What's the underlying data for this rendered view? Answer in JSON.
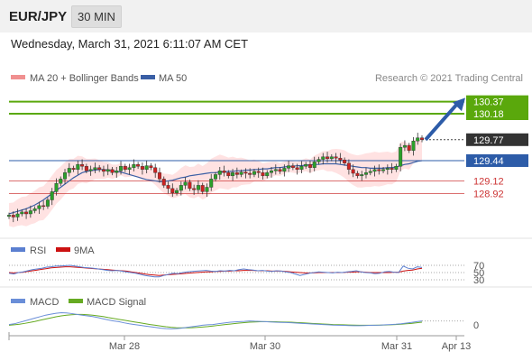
{
  "header": {
    "symbol": "EUR/JPY",
    "timeframe": "30 MIN"
  },
  "datetime": "Wednesday, March 31, 2021 6:11:07 AM CET",
  "credit": "Research © 2021 Trading Central",
  "colors": {
    "up": "#2aa02a",
    "down": "#cc2222",
    "resistance": "#5aa80c",
    "support_blue": "#2d5ca8",
    "support_red": "#cc3333",
    "ma50": "#3a5fa5",
    "bollinger": "#ffd6d6",
    "rsi": "#5b7fd0",
    "rsi_ma": "#cc1111",
    "macd": "#6a8ed8",
    "macd_signal": "#66aa22"
  },
  "chart_data": [
    {
      "type": "candlestick",
      "legend": [
        {
          "name": "MA 20 + Bollinger Bands",
          "color": "#f09090"
        },
        {
          "name": "MA 50",
          "color": "#3a5fa5"
        }
      ],
      "ylim": [
        128.5,
        130.55
      ],
      "levels": [
        {
          "value": 130.37,
          "label": "130.37",
          "style": "resistance"
        },
        {
          "value": 130.18,
          "label": "130.18",
          "style": "resistance"
        },
        {
          "value": 129.77,
          "label": "129.77",
          "style": "current"
        },
        {
          "value": 129.44,
          "label": "129.44",
          "style": "support_blue"
        },
        {
          "value": 129.12,
          "label": "129.12",
          "style": "support_red"
        },
        {
          "value": 128.92,
          "label": "128.92",
          "style": "support_red"
        }
      ],
      "x_ticks": [
        "Mar 28",
        "Mar 30",
        "Mar 31",
        "Apr 13"
      ],
      "close": [
        128.58,
        128.55,
        128.6,
        128.63,
        128.6,
        128.65,
        128.68,
        128.73,
        128.72,
        128.82,
        128.95,
        129.08,
        129.15,
        129.25,
        129.32,
        129.3,
        129.38,
        129.35,
        129.28,
        129.3,
        129.33,
        129.3,
        129.27,
        129.3,
        129.25,
        129.28,
        129.35,
        129.3,
        129.33,
        129.38,
        129.35,
        129.3,
        129.36,
        129.33,
        129.25,
        129.15,
        129.05,
        129.0,
        128.93,
        128.97,
        129.05,
        129.1,
        129.0,
        128.98,
        129.05,
        128.95,
        129.02,
        129.15,
        129.22,
        129.28,
        129.25,
        129.2,
        129.25,
        129.22,
        129.26,
        129.24,
        129.22,
        129.27,
        129.25,
        129.2,
        129.25,
        129.28,
        129.3,
        129.27,
        129.32,
        129.36,
        129.33,
        129.3,
        129.35,
        129.38,
        129.33,
        129.42,
        129.46,
        129.5,
        129.47,
        129.5,
        129.48,
        129.45,
        129.4,
        129.3,
        129.24,
        129.2,
        129.22,
        129.25,
        129.27,
        129.3,
        129.28,
        129.3,
        129.32,
        129.3,
        129.35,
        129.65,
        129.68,
        129.6,
        129.75,
        129.8,
        129.77
      ],
      "ma50": [
        128.6,
        128.62,
        128.64,
        128.66,
        128.68,
        128.71,
        128.74,
        128.78,
        128.82,
        128.87,
        128.92,
        128.97,
        129.02,
        129.07,
        129.12,
        129.17,
        129.21,
        129.25,
        129.27,
        129.28,
        129.29,
        129.3,
        129.3,
        129.29,
        129.28,
        129.27,
        129.26,
        129.24,
        129.22,
        129.2,
        129.18,
        129.16,
        129.14,
        129.13,
        129.12,
        129.11,
        129.11,
        129.12,
        129.13,
        129.15,
        129.17,
        129.18,
        129.2,
        129.21,
        129.22,
        129.23,
        129.24,
        129.25,
        129.25,
        129.26,
        129.26,
        129.27,
        129.27,
        129.28,
        129.28,
        129.29,
        129.29,
        129.3,
        129.3,
        129.31,
        129.31,
        129.32,
        129.33,
        129.33,
        129.34,
        129.35,
        129.35,
        129.36,
        129.36,
        129.37,
        129.37,
        129.38,
        129.38,
        129.39,
        129.39,
        129.39,
        129.39,
        129.38,
        129.37,
        129.36,
        129.35,
        129.34,
        129.33,
        129.33,
        129.32,
        129.32,
        129.32,
        129.32,
        129.33,
        129.33,
        129.34,
        129.36,
        129.38,
        129.39,
        129.41,
        129.43,
        129.44
      ],
      "boll_width": 0.18
    },
    {
      "type": "line",
      "legend": [
        {
          "name": "RSI",
          "color": "#5b7fd0"
        },
        {
          "name": "9MA",
          "color": "#cc1111"
        }
      ],
      "ylim": [
        20,
        80
      ],
      "y_ticks": [
        {
          "value": 70,
          "label": "70"
        },
        {
          "value": 50,
          "label": "50"
        },
        {
          "value": 30,
          "label": "30"
        }
      ],
      "rsi": [
        48,
        46,
        50,
        52,
        55,
        58,
        60,
        62,
        65,
        66,
        68,
        68,
        69,
        70,
        68,
        66,
        64,
        63,
        62,
        60,
        58,
        56,
        55,
        56,
        54,
        52,
        50,
        48,
        45,
        42,
        40,
        38,
        38,
        42,
        45,
        48,
        47,
        50,
        52,
        53,
        54,
        55,
        56,
        54,
        53,
        55,
        54,
        56,
        55,
        58,
        60,
        58,
        57,
        55,
        56,
        54,
        53,
        55,
        54,
        52,
        50,
        46,
        42,
        45,
        48,
        50,
        52,
        51,
        50,
        49,
        51,
        50,
        52,
        53,
        55,
        52,
        50,
        49,
        47,
        48,
        52,
        53,
        51,
        50,
        68,
        62,
        60,
        66,
        64
      ],
      "rsi_ma": [
        50,
        49,
        50,
        51,
        53,
        55,
        57,
        59,
        61,
        63,
        64,
        65,
        66,
        66,
        65,
        64,
        63,
        62,
        61,
        60,
        59,
        58,
        57,
        56,
        55,
        54,
        52,
        50,
        48,
        46,
        44,
        43,
        42,
        43,
        44,
        45,
        46,
        47,
        48,
        49,
        50,
        51,
        52,
        52,
        53,
        53,
        54,
        54,
        55,
        55,
        56,
        56,
        56,
        55,
        55,
        55,
        54,
        54,
        54,
        53,
        52,
        51,
        50,
        49,
        49,
        49,
        50,
        50,
        50,
        50,
        50,
        50,
        51,
        51,
        52,
        52,
        51,
        50,
        50,
        50,
        50,
        50,
        51,
        51,
        54,
        56,
        57,
        60,
        62
      ]
    },
    {
      "type": "line",
      "legend": [
        {
          "name": "MACD",
          "color": "#6a8ed8"
        },
        {
          "name": "MACD Signal",
          "color": "#66aa22"
        }
      ],
      "ylim": [
        -1,
        1
      ],
      "y_ticks": [
        {
          "value": 0,
          "label": "0"
        }
      ],
      "macd": [
        -0.1,
        -0.05,
        0.05,
        0.15,
        0.25,
        0.35,
        0.45,
        0.55,
        0.62,
        0.68,
        0.72,
        0.7,
        0.66,
        0.6,
        0.55,
        0.5,
        0.45,
        0.38,
        0.3,
        0.22,
        0.15,
        0.1,
        0.02,
        -0.05,
        -0.1,
        -0.15,
        -0.2,
        -0.25,
        -0.3,
        -0.35,
        -0.38,
        -0.4,
        -0.38,
        -0.35,
        -0.3,
        -0.25,
        -0.2,
        -0.15,
        -0.12,
        -0.1,
        -0.05,
        0.0,
        0.05,
        0.08,
        0.1,
        0.12,
        0.15,
        0.13,
        0.12,
        0.1,
        0.08,
        0.06,
        0.05,
        0.04,
        0.02,
        0.0,
        -0.02,
        -0.04,
        -0.06,
        -0.08,
        -0.1,
        -0.12,
        -0.14,
        -0.15,
        -0.16,
        -0.17,
        -0.18,
        -0.18,
        -0.17,
        -0.16,
        -0.15,
        -0.14,
        -0.12,
        -0.1,
        -0.08,
        -0.05,
        0.0,
        0.05,
        0.1,
        0.15
      ],
      "signal": [
        -0.15,
        -0.12,
        -0.08,
        -0.02,
        0.05,
        0.12,
        0.2,
        0.28,
        0.36,
        0.44,
        0.5,
        0.55,
        0.58,
        0.6,
        0.6,
        0.58,
        0.55,
        0.5,
        0.45,
        0.38,
        0.32,
        0.26,
        0.2,
        0.14,
        0.08,
        0.02,
        -0.04,
        -0.1,
        -0.15,
        -0.2,
        -0.25,
        -0.29,
        -0.32,
        -0.33,
        -0.33,
        -0.32,
        -0.3,
        -0.27,
        -0.24,
        -0.2,
        -0.16,
        -0.12,
        -0.08,
        -0.04,
        0.0,
        0.03,
        0.06,
        0.08,
        0.09,
        0.1,
        0.1,
        0.09,
        0.08,
        0.07,
        0.06,
        0.04,
        0.02,
        0.0,
        -0.02,
        -0.04,
        -0.06,
        -0.08,
        -0.1,
        -0.11,
        -0.12,
        -0.13,
        -0.14,
        -0.15,
        -0.15,
        -0.15,
        -0.15,
        -0.14,
        -0.13,
        -0.12,
        -0.1,
        -0.08,
        -0.05,
        -0.02,
        0.02,
        0.06
      ]
    }
  ]
}
